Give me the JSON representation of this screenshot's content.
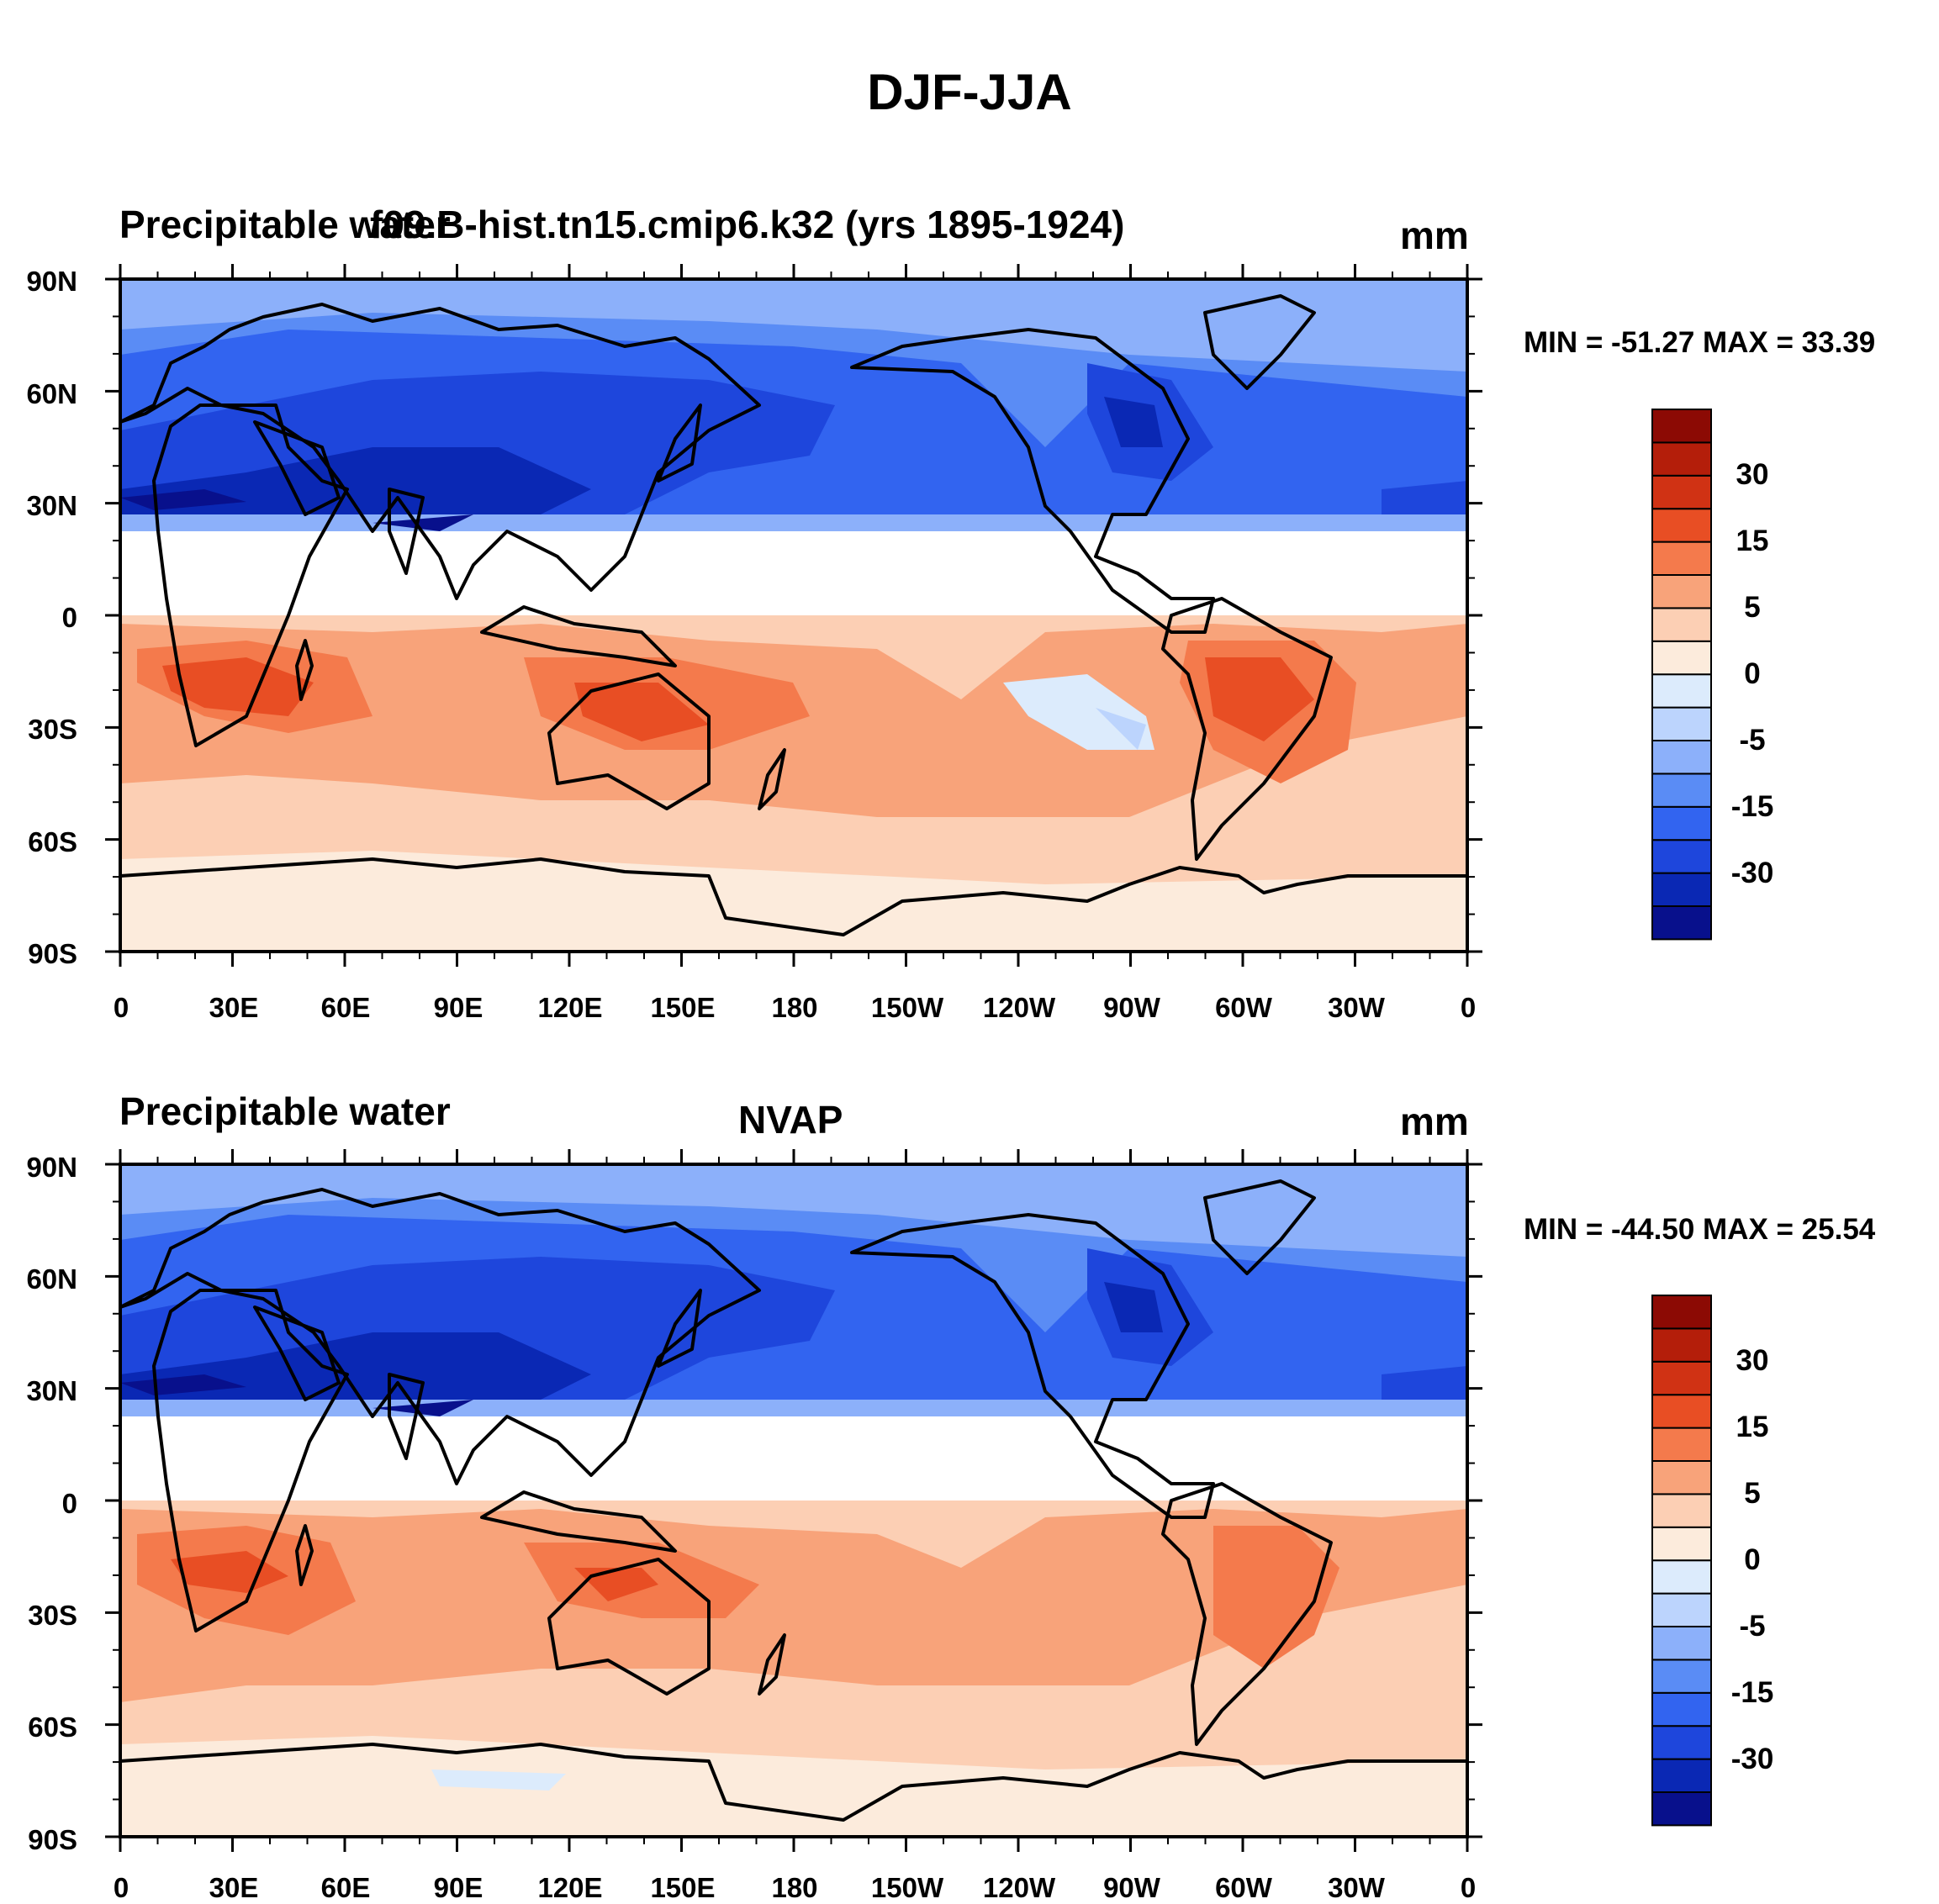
{
  "title": "DJF-JJA",
  "colors": {
    "levels_colors": [
      "#08108c",
      "#0a28b4",
      "#1e46dc",
      "#3264f0",
      "#5a8cf5",
      "#8cb0fa",
      "#bcd4fd",
      "#dcebfc",
      "#fcebdc",
      "#fccfb4",
      "#f8a37a",
      "#f47a4c",
      "#e84e24",
      "#d03214",
      "#b41e0a",
      "#8c0a04"
    ],
    "coast": "#000000"
  },
  "colorbar_labels": [
    "30",
    "15",
    "5",
    "0",
    "-5",
    "-15",
    "-30"
  ],
  "lat_labels": [
    "90N",
    "60N",
    "30N",
    "0",
    "30S",
    "60S",
    "90S"
  ],
  "lon_labels": [
    "0",
    "30E",
    "60E",
    "90E",
    "120E",
    "150E",
    "180",
    "150W",
    "120W",
    "90W",
    "60W",
    "30W",
    "0"
  ],
  "panels": [
    {
      "left_title": "Precipitable water",
      "center_title": "f09.B-hist.tn15.cmip6.k32 (yrs 1895-1924)",
      "units": "mm",
      "stats": "MIN = -51.27 MAX =  33.39",
      "min": -51.27,
      "max": 33.39
    },
    {
      "left_title": "Precipitable water",
      "center_title": "NVAP",
      "units": "mm",
      "stats": "MIN = -44.50 MAX =  25.54",
      "min": -44.5,
      "max": 25.54
    }
  ]
}
